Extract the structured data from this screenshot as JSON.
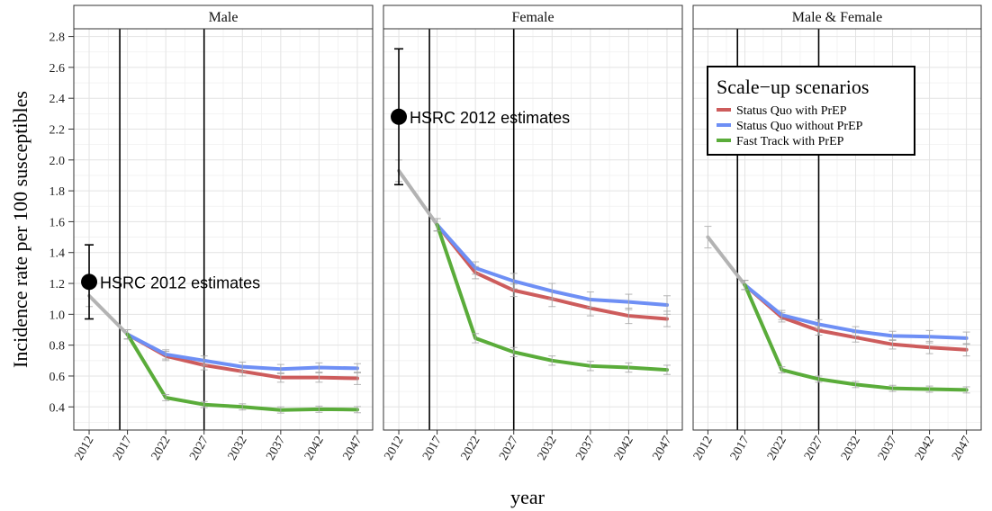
{
  "chart_data": {
    "type": "line",
    "ylabel": "Incidence rate per 100 susceptibles",
    "xlabel": "year",
    "x": [
      2012,
      2017,
      2022,
      2027,
      2032,
      2037,
      2042,
      2047
    ],
    "xticks": [
      "2012",
      "2017",
      "2022",
      "2027",
      "2032",
      "2037",
      "2042",
      "2047"
    ],
    "ylim": [
      0.25,
      2.85
    ],
    "yticks": [
      "0.4",
      "0.6",
      "0.8",
      "1.0",
      "1.2",
      "1.4",
      "1.6",
      "1.8",
      "2.0",
      "2.2",
      "2.4",
      "2.6",
      "2.8"
    ],
    "xlim": [
      2010,
      2049
    ],
    "grid": true,
    "legend": {
      "title": "Scale−up scenarios",
      "placement": "top-right of third panel",
      "entries": [
        {
          "label": "Status Quo with PrEP",
          "color": "#cd5c5c"
        },
        {
          "label": "Status Quo without PrEP",
          "color": "#6e8ff5"
        },
        {
          "label": "Fast Track with PrEP",
          "color": "#5aac3a"
        }
      ]
    },
    "baseline_color": "#b3b3b3",
    "vlines": [
      2016,
      2027
    ],
    "panels": [
      {
        "title": "Male",
        "baseline": {
          "x": [
            2012,
            2017
          ],
          "y": [
            1.12,
            0.87
          ]
        },
        "series": [
          {
            "name": "Status Quo with PrEP",
            "color": "#cd5c5c",
            "x": [
              2017,
              2022,
              2027,
              2032,
              2037,
              2042,
              2047
            ],
            "y": [
              0.87,
              0.73,
              0.67,
              0.63,
              0.59,
              0.59,
              0.585
            ],
            "err": [
              0.03,
              0.03,
              0.03,
              0.03,
              0.03,
              0.03,
              0.04
            ]
          },
          {
            "name": "Status Quo without PrEP",
            "color": "#6e8ff5",
            "x": [
              2017,
              2022,
              2027,
              2032,
              2037,
              2042,
              2047
            ],
            "y": [
              0.87,
              0.74,
              0.7,
              0.66,
              0.645,
              0.655,
              0.65
            ],
            "err": [
              0.03,
              0.03,
              0.03,
              0.03,
              0.03,
              0.03,
              0.03
            ]
          },
          {
            "name": "Fast Track with PrEP",
            "color": "#5aac3a",
            "x": [
              2017,
              2022,
              2027,
              2032,
              2037,
              2042,
              2047
            ],
            "y": [
              0.87,
              0.46,
              0.415,
              0.4,
              0.38,
              0.385,
              0.382
            ],
            "err": [
              0.03,
              0.02,
              0.02,
              0.02,
              0.02,
              0.02,
              0.02
            ]
          }
        ],
        "estimate": {
          "x": 2012,
          "y": 1.21,
          "low": 0.97,
          "high": 1.45,
          "label": "HSRC 2012 estimates"
        }
      },
      {
        "title": "Female",
        "baseline": {
          "x": [
            2012,
            2017
          ],
          "y": [
            1.93,
            1.58
          ]
        },
        "series": [
          {
            "name": "Status Quo with PrEP",
            "color": "#cd5c5c",
            "x": [
              2017,
              2022,
              2027,
              2032,
              2037,
              2042,
              2047
            ],
            "y": [
              1.58,
              1.27,
              1.155,
              1.1,
              1.04,
              0.99,
              0.97
            ],
            "err": [
              0.04,
              0.04,
              0.04,
              0.05,
              0.05,
              0.05,
              0.05
            ]
          },
          {
            "name": "Status Quo without PrEP",
            "color": "#6e8ff5",
            "x": [
              2017,
              2022,
              2027,
              2032,
              2037,
              2042,
              2047
            ],
            "y": [
              1.58,
              1.3,
              1.215,
              1.15,
              1.095,
              1.08,
              1.06
            ],
            "err": [
              0.04,
              0.04,
              0.05,
              0.05,
              0.05,
              0.05,
              0.06
            ]
          },
          {
            "name": "Fast Track with PrEP",
            "color": "#5aac3a",
            "x": [
              2017,
              2022,
              2027,
              2032,
              2037,
              2042,
              2047
            ],
            "y": [
              1.58,
              0.845,
              0.755,
              0.7,
              0.665,
              0.655,
              0.64
            ],
            "err": [
              0.04,
              0.03,
              0.03,
              0.03,
              0.03,
              0.03,
              0.03
            ]
          }
        ],
        "estimate": {
          "x": 2012,
          "y": 2.28,
          "low": 1.84,
          "high": 2.72,
          "label": "HSRC 2012 estimates"
        }
      },
      {
        "title": "Male & Female",
        "baseline": {
          "x": [
            2012,
            2017
          ],
          "y": [
            1.5,
            1.19
          ]
        },
        "series": [
          {
            "name": "Status Quo with PrEP",
            "color": "#cd5c5c",
            "x": [
              2017,
              2022,
              2027,
              2032,
              2037,
              2042,
              2047
            ],
            "y": [
              1.19,
              0.98,
              0.895,
              0.85,
              0.805,
              0.785,
              0.77
            ],
            "err": [
              0.03,
              0.03,
              0.03,
              0.03,
              0.03,
              0.04,
              0.04
            ]
          },
          {
            "name": "Status Quo without PrEP",
            "color": "#6e8ff5",
            "x": [
              2017,
              2022,
              2027,
              2032,
              2037,
              2042,
              2047
            ],
            "y": [
              1.19,
              0.995,
              0.935,
              0.89,
              0.86,
              0.855,
              0.845
            ],
            "err": [
              0.03,
              0.03,
              0.03,
              0.03,
              0.03,
              0.04,
              0.04
            ]
          },
          {
            "name": "Fast Track with PrEP",
            "color": "#5aac3a",
            "x": [
              2017,
              2022,
              2027,
              2032,
              2037,
              2042,
              2047
            ],
            "y": [
              1.19,
              0.64,
              0.58,
              0.545,
              0.52,
              0.515,
              0.51
            ],
            "err": [
              0.03,
              0.02,
              0.02,
              0.02,
              0.02,
              0.02,
              0.02
            ]
          }
        ],
        "estimate": null
      }
    ]
  }
}
